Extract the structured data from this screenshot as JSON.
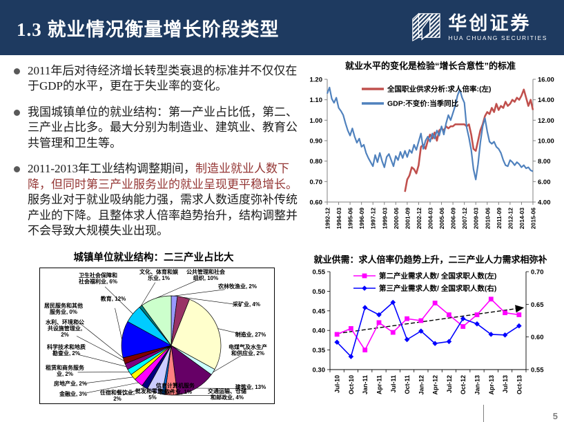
{
  "header": {
    "title": "1.3 就业情况衡量增长阶段类型",
    "logo": {
      "name": "华创证券",
      "subtitle": "HUA CHUANG SECURITIES"
    }
  },
  "bullets": [
    {
      "text": "2011年后对待经济增长转型类衰退的标准并不仅仅在于GDP的水平，更在于失业率的变化。"
    },
    {
      "text": "我国城镇单位的就业结构：第一产业占比低，第二、三产业占比多。最大分别为制造业、建筑业、教育公共管理和卫生等。"
    },
    {
      "prefix": "2011-2013年工业结构调整期间，",
      "highlight": "制造业就业人数下降，但同时第三产业服务业的就业呈现更平稳增长。",
      "suffix": "服务业对于就业吸纳能力强，需求人数适度弥补传统产业的下降。且整体求人倍率趋势抬升，结构调整并不会导致大规模失业出现。"
    }
  ],
  "page_number": "5",
  "colors": {
    "header_bg": "#1e3a60",
    "highlight_text": "#943634",
    "series_red": "#C0504D",
    "series_blue": "#4F81BD",
    "series_magenta": "#FF00FF",
    "series_pure_blue": "#0000FF"
  },
  "chart_data": [
    {
      "type": "line",
      "title": "就业水平的变化是检验“增长合意性”的标准",
      "x_tick_labels": [
        "1992-12",
        "1994-03",
        "1995-06",
        "1996-09",
        "1997-12",
        "1999-03",
        "2000-06",
        "2001-09",
        "2002-12",
        "2004-03",
        "2005-06",
        "2006-09",
        "2007-12",
        "2009-03",
        "2010-06",
        "2011-09",
        "2012-12",
        "2014-03",
        "2015-06"
      ],
      "left_axis": {
        "min": 0.6,
        "max": 1.2,
        "step": 0.1
      },
      "right_axis": {
        "min": 4.0,
        "max": 16.0,
        "step": 2.0
      },
      "legend_position": "top-left-inside",
      "grid": false,
      "series": [
        {
          "name": "全国职业供求分析:求人倍率:(左)",
          "color": "#C0504D",
          "axis": "left",
          "points": [
            [
              34,
              0.65
            ],
            [
              35,
              0.71
            ],
            [
              36,
              0.73
            ],
            [
              37,
              0.77
            ],
            [
              38,
              0.76
            ],
            [
              39,
              0.74
            ],
            [
              40,
              0.78
            ],
            [
              41,
              0.87
            ],
            [
              42,
              0.88
            ],
            [
              43,
              0.86
            ],
            [
              44,
              0.9
            ],
            [
              45,
              0.93
            ],
            [
              46,
              0.91
            ],
            [
              47,
              0.94
            ],
            [
              48,
              0.9
            ],
            [
              49,
              0.95
            ],
            [
              50,
              0.96
            ],
            [
              51,
              0.95
            ],
            [
              52,
              0.97
            ],
            [
              53,
              0.96
            ],
            [
              54,
              0.97
            ],
            [
              55,
              0.97
            ],
            [
              56,
              0.98
            ],
            [
              57,
              0.98
            ],
            [
              58,
              0.98
            ],
            [
              59,
              0.98
            ],
            [
              60,
              0.98
            ],
            [
              61,
              0.97
            ],
            [
              62,
              0.98
            ],
            [
              63,
              0.93
            ],
            [
              64,
              0.86
            ],
            [
              65,
              0.85
            ],
            [
              66,
              0.9
            ],
            [
              67,
              0.95
            ],
            [
              68,
              0.98
            ],
            [
              69,
              1.02
            ],
            [
              70,
              1.04
            ],
            [
              71,
              1.03
            ],
            [
              72,
              1.06
            ],
            [
              73,
              1.04
            ],
            [
              74,
              1.08
            ],
            [
              75,
              1.05
            ],
            [
              76,
              1.07
            ],
            [
              77,
              1.06
            ],
            [
              78,
              1.09
            ],
            [
              79,
              1.07
            ],
            [
              80,
              1.08
            ],
            [
              81,
              1.1
            ],
            [
              82,
              1.09
            ],
            [
              83,
              1.11
            ],
            [
              84,
              1.1
            ],
            [
              85,
              1.12
            ],
            [
              86,
              1.15
            ],
            [
              87,
              1.11
            ],
            [
              88,
              1.07
            ],
            [
              89,
              1.1
            ],
            [
              90,
              1.05
            ]
          ]
        },
        {
          "name": "GDP:不变价:当季同比",
          "color": "#4F81BD",
          "axis": "right",
          "points": [
            [
              0,
              14.6
            ],
            [
              1,
              15.2
            ],
            [
              2,
              14.1
            ],
            [
              3,
              13.7
            ],
            [
              4,
              14.2
            ],
            [
              5,
              13.2
            ],
            [
              6,
              12.9
            ],
            [
              7,
              12.5
            ],
            [
              8,
              11.7
            ],
            [
              9,
              11.0
            ],
            [
              10,
              10.5
            ],
            [
              11,
              11.2
            ],
            [
              12,
              10.4
            ],
            [
              13,
              9.8
            ],
            [
              14,
              10.2
            ],
            [
              15,
              9.4
            ],
            [
              16,
              9.6
            ],
            [
              17,
              8.8
            ],
            [
              18,
              8.3
            ],
            [
              19,
              7.9
            ],
            [
              20,
              7.5
            ],
            [
              21,
              8.6
            ],
            [
              22,
              7.9
            ],
            [
              23,
              8.8
            ],
            [
              24,
              8.0
            ],
            [
              25,
              7.4
            ],
            [
              26,
              8.4
            ],
            [
              27,
              8.7
            ],
            [
              28,
              8.1
            ],
            [
              29,
              7.5
            ],
            [
              30,
              8.5
            ],
            [
              31,
              8.1
            ],
            [
              32,
              8.9
            ],
            [
              33,
              8.3
            ],
            [
              34,
              9.0
            ],
            [
              35,
              8.4
            ],
            [
              36,
              9.1
            ],
            [
              37,
              8.8
            ],
            [
              38,
              9.6
            ],
            [
              39,
              9.1
            ],
            [
              40,
              9.9
            ],
            [
              41,
              10.7
            ],
            [
              42,
              9.2
            ],
            [
              43,
              10.0
            ],
            [
              44,
              10.4
            ],
            [
              45,
              9.9
            ],
            [
              46,
              10.7
            ],
            [
              47,
              10.2
            ],
            [
              48,
              11.0
            ],
            [
              49,
              10.5
            ],
            [
              50,
              11.4
            ],
            [
              51,
              10.6
            ],
            [
              52,
              11.7
            ],
            [
              53,
              12.5
            ],
            [
              54,
              12.0
            ],
            [
              55,
              12.7
            ],
            [
              56,
              13.4
            ],
            [
              57,
              14.4
            ],
            [
              58,
              15.0
            ],
            [
              59,
              14.2
            ],
            [
              60,
              13.7
            ],
            [
              61,
              11.3
            ],
            [
              62,
              10.3
            ],
            [
              63,
              9.1
            ],
            [
              64,
              7.2
            ],
            [
              65,
              6.2
            ],
            [
              66,
              7.7
            ],
            [
              67,
              9.8
            ],
            [
              68,
              11.4
            ],
            [
              69,
              12.2
            ],
            [
              70,
              10.9
            ],
            [
              71,
              9.9
            ],
            [
              72,
              9.7
            ],
            [
              73,
              9.9
            ],
            [
              74,
              9.4
            ],
            [
              75,
              9.2
            ],
            [
              76,
              8.8
            ],
            [
              77,
              8.1
            ],
            [
              78,
              7.6
            ],
            [
              79,
              7.5
            ],
            [
              80,
              8.1
            ],
            [
              81,
              7.9
            ],
            [
              82,
              7.6
            ],
            [
              83,
              7.9
            ],
            [
              84,
              7.7
            ],
            [
              85,
              7.4
            ],
            [
              86,
              7.6
            ],
            [
              87,
              7.3
            ],
            [
              88,
              7.4
            ],
            [
              89,
              7.1
            ],
            [
              90,
              7.0
            ]
          ]
        }
      ]
    },
    {
      "type": "pie",
      "title": "城镇单位就业结构：二三产业占比大",
      "slices": [
        {
          "label": "农林牧渔业",
          "pct": 2,
          "color": "#9999FF"
        },
        {
          "label": "采矿业",
          "pct": 4,
          "color": "#993366"
        },
        {
          "label": "制造业",
          "pct": 27,
          "color": "#FFFFCC"
        },
        {
          "label": "电煤气及水生产和供应业",
          "pct": 2,
          "color": "#CCFFFF"
        },
        {
          "label": "建筑业",
          "pct": 13,
          "color": "#660066"
        },
        {
          "label": "交通运输、仓储和邮政业",
          "pct": 4,
          "color": "#FF8080"
        },
        {
          "label": "信息计算机服务和软件业",
          "pct": 1,
          "color": "#0066CC"
        },
        {
          "label": "批发和零售业",
          "pct": 5,
          "color": "#CCCCFF"
        },
        {
          "label": "住宿和餐饮业",
          "pct": 2,
          "color": "#000080"
        },
        {
          "label": "金融业",
          "pct": 3,
          "color": "#FF00FF"
        },
        {
          "label": "房地产业",
          "pct": 2,
          "color": "#FFFF00"
        },
        {
          "label": "租赁和商务服务业",
          "pct": 2,
          "color": "#00FFFF"
        },
        {
          "label": "科学技术和地质勘查业",
          "pct": 2,
          "color": "#800080"
        },
        {
          "label": "水利、环境和公共设施管理业",
          "pct": 2,
          "color": "#800000"
        },
        {
          "label": "居民服务和其他服务业",
          "pct": 0,
          "color": "#008080"
        },
        {
          "label": "教育",
          "pct": 12,
          "color": "#0000FF"
        },
        {
          "label": "卫生社会保障和社会福利业",
          "pct": 6,
          "color": "#00CCFF"
        },
        {
          "label": "文化、体育和娱乐业",
          "pct": 1,
          "color": "#008080"
        },
        {
          "label": "公共管理和社会组织",
          "pct": 10,
          "color": "#CCFFCC"
        }
      ]
    },
    {
      "type": "line",
      "title": "就业供需：求人倍率仍趋势上升，二三产业人力需求相弥补",
      "categories": [
        "Jul-10",
        "Oct-10",
        "Jan-11",
        "Apr-11",
        "Jul-11",
        "Oct-11",
        "Jan-12",
        "Apr-12",
        "Jul-12",
        "Oct-12",
        "Jan-13",
        "Apr-13",
        "Jul-13",
        "Oct-13"
      ],
      "left_axis": {
        "min": 0.3,
        "max": 0.55,
        "step": 0.05
      },
      "right_axis": {
        "min": 0.55,
        "max": 0.7,
        "step": 0.05
      },
      "grid": false,
      "series": [
        {
          "name": "第二产业需求人数/ 全国求职人数(左)",
          "color": "#FF00FF",
          "marker": "square",
          "axis": "left",
          "values": [
            0.39,
            0.405,
            0.35,
            0.42,
            0.395,
            0.43,
            0.425,
            0.47,
            0.44,
            0.41,
            0.44,
            0.48,
            0.445,
            0.44
          ]
        },
        {
          "name": "第三产业需求人数/ 全国求职人数(右)",
          "color": "#0000FF",
          "marker": "diamond",
          "axis": "right",
          "values": [
            0.592,
            0.57,
            0.645,
            0.634,
            0.653,
            0.596,
            0.609,
            0.59,
            0.593,
            0.628,
            0.62,
            0.604,
            0.603,
            0.617
          ]
        }
      ],
      "trendline": {
        "axis": "left",
        "start": 0.392,
        "end": 0.458,
        "style": "dashed",
        "color": "#000000"
      }
    }
  ]
}
